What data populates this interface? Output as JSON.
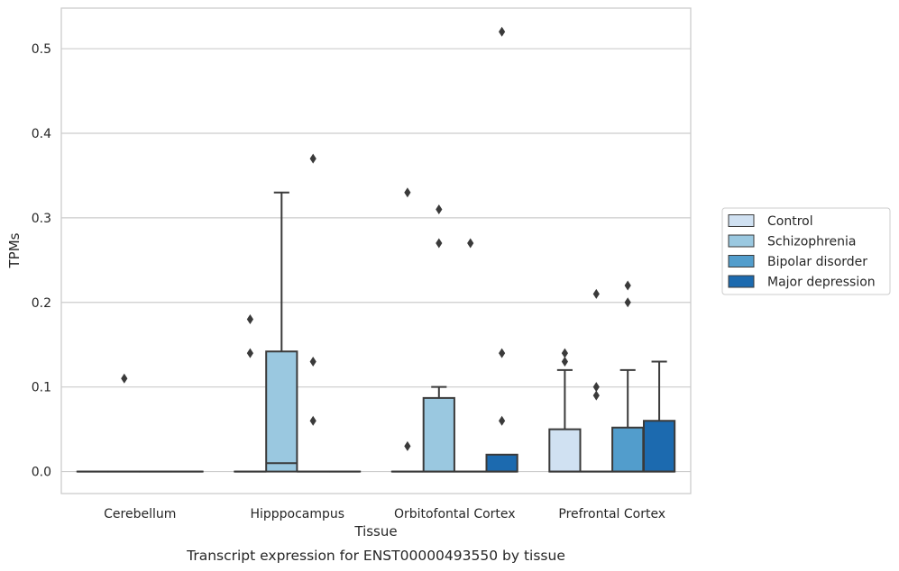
{
  "chart_data": {
    "type": "box",
    "caption": "Transcript expression for ENST00000493550 by tissue",
    "xlabel": "Tissue",
    "ylabel": "TPMs",
    "ylim": [
      -0.026,
      0.548
    ],
    "yticks": [
      0.0,
      0.1,
      0.2,
      0.3,
      0.4,
      0.5
    ],
    "ytick_labels": [
      "0.0",
      "0.1",
      "0.2",
      "0.3",
      "0.4",
      "0.5"
    ],
    "grid": true,
    "legend_position": "right, outside plot",
    "categories": [
      "Cerebellum",
      "Hipppocampus",
      "Orbitofontal Cortex",
      "Prefrontal Cortex"
    ],
    "series": [
      {
        "name": "Control",
        "color": "#d0e1f2",
        "boxes": [
          {
            "min": 0,
            "q1": 0,
            "median": 0,
            "q3": 0,
            "max": 0,
            "outliers": []
          },
          {
            "min": 0,
            "q1": 0,
            "median": 0,
            "q3": 0,
            "max": 0,
            "outliers": [
              0.18,
              0.14
            ]
          },
          {
            "min": 0,
            "q1": 0,
            "median": 0,
            "q3": 0,
            "max": 0,
            "outliers": [
              0.33,
              0.03
            ]
          },
          {
            "min": 0,
            "q1": 0,
            "median": 0,
            "q3": 0.05,
            "max": 0.12,
            "outliers": [
              0.14,
              0.13
            ]
          }
        ]
      },
      {
        "name": "Schizophrenia",
        "color": "#9ac8e0",
        "boxes": [
          {
            "min": 0,
            "q1": 0,
            "median": 0,
            "q3": 0,
            "max": 0,
            "outliers": [
              0.11
            ]
          },
          {
            "min": 0,
            "q1": 0,
            "median": 0.01,
            "q3": 0.142,
            "max": 0.33,
            "outliers": []
          },
          {
            "min": 0,
            "q1": 0,
            "median": 0,
            "q3": 0.087,
            "max": 0.1,
            "outliers": [
              0.31,
              0.27
            ]
          },
          {
            "min": 0,
            "q1": 0,
            "median": 0,
            "q3": 0,
            "max": 0,
            "outliers": [
              0.21,
              0.1,
              0.09
            ]
          }
        ]
      },
      {
        "name": "Bipolar disorder",
        "color": "#529dcc",
        "boxes": [
          {
            "min": 0,
            "q1": 0,
            "median": 0,
            "q3": 0,
            "max": 0,
            "outliers": []
          },
          {
            "min": 0,
            "q1": 0,
            "median": 0,
            "q3": 0,
            "max": 0,
            "outliers": [
              0.37,
              0.13,
              0.06
            ]
          },
          {
            "min": 0,
            "q1": 0,
            "median": 0,
            "q3": 0,
            "max": 0,
            "outliers": [
              0.27
            ]
          },
          {
            "min": 0,
            "q1": 0,
            "median": 0,
            "q3": 0.052,
            "max": 0.12,
            "outliers": [
              0.22,
              0.2
            ]
          }
        ]
      },
      {
        "name": "Major depression",
        "color": "#1c6aaf",
        "boxes": [
          {
            "min": 0,
            "q1": 0,
            "median": 0,
            "q3": 0,
            "max": 0,
            "outliers": []
          },
          {
            "min": 0,
            "q1": 0,
            "median": 0,
            "q3": 0,
            "max": 0,
            "outliers": []
          },
          {
            "min": 0,
            "q1": 0,
            "median": 0,
            "q3": 0.02,
            "max": 0.02,
            "outliers": [
              0.52,
              0.14,
              0.06
            ]
          },
          {
            "min": 0,
            "q1": 0,
            "median": 0,
            "q3": 0.06,
            "max": 0.13,
            "outliers": []
          }
        ]
      }
    ]
  }
}
